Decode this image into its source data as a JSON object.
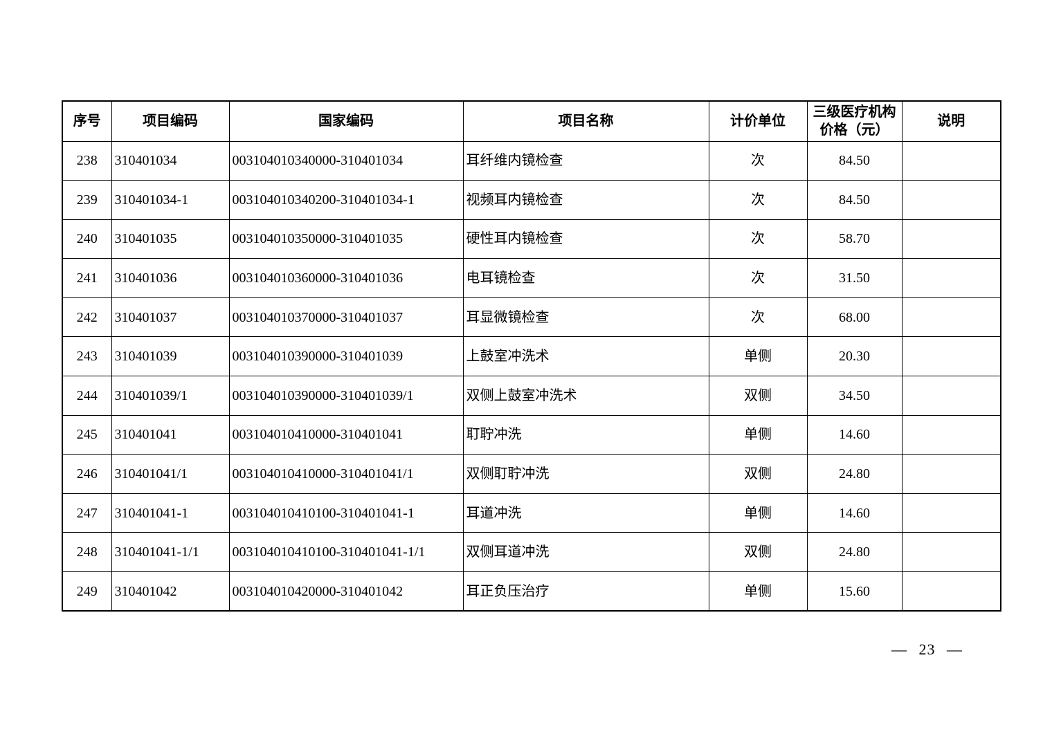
{
  "table": {
    "columns": [
      {
        "key": "seq",
        "label": "序号"
      },
      {
        "key": "code",
        "label": "项目编码"
      },
      {
        "key": "national_code",
        "label": "国家编码"
      },
      {
        "key": "name",
        "label": "项目名称"
      },
      {
        "key": "unit",
        "label": "计价单位"
      },
      {
        "key": "price",
        "label": "三级医疗机构\n价格（元）"
      },
      {
        "key": "note",
        "label": "说明"
      }
    ],
    "rows": [
      {
        "seq": "238",
        "code": "310401034",
        "national_code": "003104010340000-310401034",
        "name": "耳纤维内镜检查",
        "unit": "次",
        "price": "84.50",
        "note": ""
      },
      {
        "seq": "239",
        "code": "310401034-1",
        "national_code": "003104010340200-310401034-1",
        "name": "视频耳内镜检查",
        "unit": "次",
        "price": "84.50",
        "note": ""
      },
      {
        "seq": "240",
        "code": "310401035",
        "national_code": "003104010350000-310401035",
        "name": "硬性耳内镜检查",
        "unit": "次",
        "price": "58.70",
        "note": ""
      },
      {
        "seq": "241",
        "code": "310401036",
        "national_code": "003104010360000-310401036",
        "name": "电耳镜检查",
        "unit": "次",
        "price": "31.50",
        "note": ""
      },
      {
        "seq": "242",
        "code": "310401037",
        "national_code": "003104010370000-310401037",
        "name": "耳显微镜检查",
        "unit": "次",
        "price": "68.00",
        "note": ""
      },
      {
        "seq": "243",
        "code": "310401039",
        "national_code": "003104010390000-310401039",
        "name": "上鼓室冲洗术",
        "unit": "单侧",
        "price": "20.30",
        "note": ""
      },
      {
        "seq": "244",
        "code": "310401039/1",
        "national_code": "003104010390000-310401039/1",
        "name": "双侧上鼓室冲洗术",
        "unit": "双侧",
        "price": "34.50",
        "note": ""
      },
      {
        "seq": "245",
        "code": "310401041",
        "national_code": "003104010410000-310401041",
        "name": "耵聍冲洗",
        "unit": "单侧",
        "price": "14.60",
        "note": ""
      },
      {
        "seq": "246",
        "code": "310401041/1",
        "national_code": "003104010410000-310401041/1",
        "name": "双侧耵聍冲洗",
        "unit": "双侧",
        "price": "24.80",
        "note": ""
      },
      {
        "seq": "247",
        "code": "310401041-1",
        "national_code": "003104010410100-310401041-1",
        "name": "耳道冲洗",
        "unit": "单侧",
        "price": "14.60",
        "note": ""
      },
      {
        "seq": "248",
        "code": "310401041-1/1",
        "national_code": "003104010410100-310401041-1/1",
        "name": "双侧耳道冲洗",
        "unit": "双侧",
        "price": "24.80",
        "note": ""
      },
      {
        "seq": "249",
        "code": "310401042",
        "national_code": "003104010420000-310401042",
        "name": "耳正负压治疗",
        "unit": "单侧",
        "price": "15.60",
        "note": ""
      }
    ]
  },
  "footer": {
    "page_label": "— 23 —"
  }
}
